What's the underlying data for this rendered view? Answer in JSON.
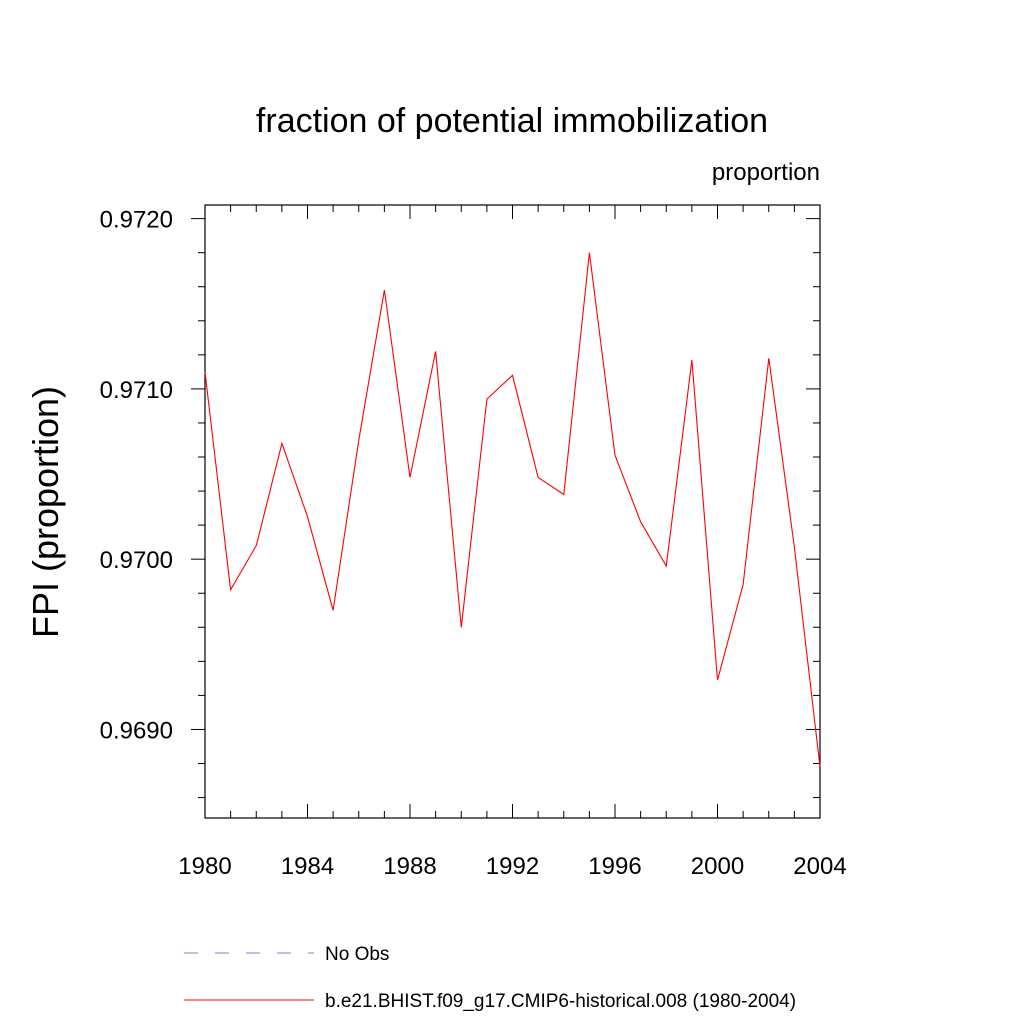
{
  "chart_data": {
    "type": "line",
    "title": "fraction of potential immobilization",
    "units_label": "proportion",
    "xlabel": "",
    "ylabel": "FPI  (proportion)",
    "xlim": [
      1980,
      2004
    ],
    "ylim": [
      0.96848,
      0.97208
    ],
    "x_ticks": [
      1980,
      1984,
      1988,
      1992,
      1996,
      2000,
      2004
    ],
    "x_tick_labels": [
      "1980",
      "1984",
      "1988",
      "1992",
      "1996",
      "2000",
      "2004"
    ],
    "y_ticks": [
      0.969,
      0.97,
      0.971,
      0.972
    ],
    "y_tick_labels": [
      "0.9690",
      "0.9700",
      "0.9710",
      "0.9720"
    ],
    "y_minor_step": 0.0002,
    "grid": false,
    "legend_position": "bottom",
    "series": [
      {
        "name": "b.e21.BHIST.f09_g17.CMIP6-historical.008 (1980-2004)",
        "color": "#ff0000",
        "style": "solid",
        "x": [
          1980,
          1981,
          1982,
          1983,
          1984,
          1985,
          1986,
          1987,
          1988,
          1989,
          1990,
          1991,
          1992,
          1993,
          1994,
          1995,
          1996,
          1997,
          1998,
          1999,
          2000,
          2001,
          2002,
          2003,
          2004
        ],
        "values": [
          0.9711,
          0.96982,
          0.97008,
          0.97068,
          0.97025,
          0.9697,
          0.9707,
          0.97158,
          0.97048,
          0.97122,
          0.9696,
          0.97094,
          0.97108,
          0.97048,
          0.97038,
          0.9718,
          0.97061,
          0.97022,
          0.96996,
          0.97117,
          0.96929,
          0.96985,
          0.97118,
          0.97007,
          0.96878
        ]
      },
      {
        "name": "No Obs",
        "color": "#7f7fbf",
        "style": "dashed",
        "x": [],
        "values": []
      }
    ]
  }
}
